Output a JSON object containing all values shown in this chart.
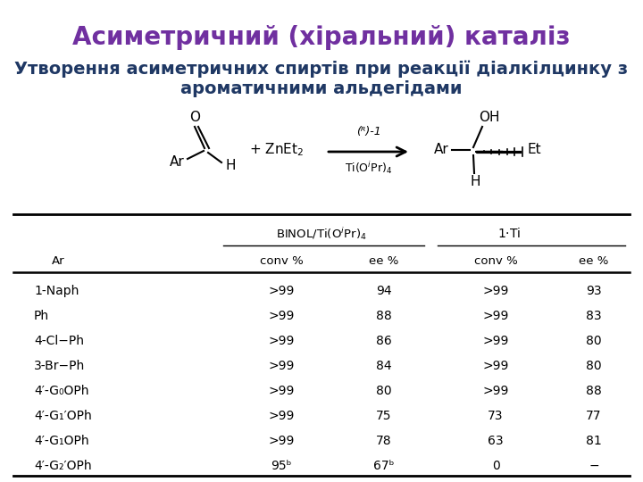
{
  "title": "Асиметричний (хіральний) каталіз",
  "subtitle_line1": "Утворення асиметричних спиртів при реакції діалкілцинку з",
  "subtitle_line2": "ароматичними альдегідами",
  "title_color": "#7030A0",
  "subtitle_color": "#1F3864",
  "background_color": "#FFFFFF",
  "table_data": [
    [
      "1-Naph",
      ">99",
      "94",
      ">99",
      "93"
    ],
    [
      "Ph",
      ">99",
      "88",
      ">99",
      "83"
    ],
    [
      "4-Cl−Ph",
      ">99",
      "86",
      ">99",
      "80"
    ],
    [
      "3-Br−Ph",
      ">99",
      "84",
      ">99",
      "80"
    ],
    [
      "4′-G₀OPh",
      ">99",
      "80",
      ">99",
      "88"
    ],
    [
      "4′-G₁′OPh",
      ">99",
      "75",
      "73",
      "77"
    ],
    [
      "4′-G₁OPh",
      ">99",
      "78",
      "63",
      "81"
    ],
    [
      "4′-G₂′OPh",
      "95ᵇ",
      "67ᵇ",
      "0",
      "−"
    ]
  ]
}
